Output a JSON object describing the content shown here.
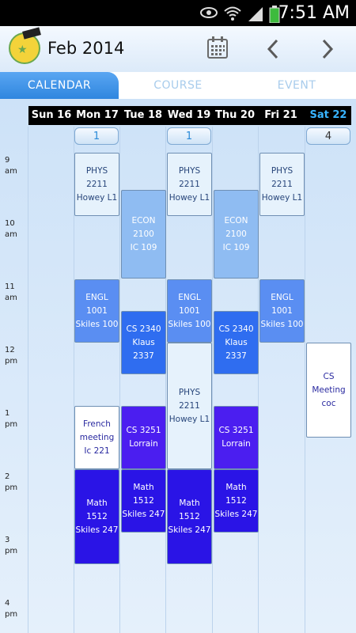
{
  "status_bar": {
    "time": "7:51 AM"
  },
  "app_bar": {
    "title": "Feb 2014",
    "calendar_icon": "calendar-icon",
    "prev_icon": "chevron-left-icon",
    "next_icon": "chevron-right-icon"
  },
  "tabs": [
    {
      "label": "CALENDAR",
      "active": true
    },
    {
      "label": "COURSE",
      "active": false
    },
    {
      "label": "EVENT",
      "active": false
    }
  ],
  "days": [
    {
      "label": "Sun 16"
    },
    {
      "label": "Mon 17"
    },
    {
      "label": "Tue 18"
    },
    {
      "label": "Wed 19"
    },
    {
      "label": "Thu 20"
    },
    {
      "label": "Fri 21"
    },
    {
      "label": "Sat 22",
      "today": true
    }
  ],
  "badges": [
    {
      "day": "Mon 17",
      "count": "1"
    },
    {
      "day": "Wed 19",
      "count": "1"
    },
    {
      "day": "Sat 22",
      "count": "4"
    }
  ],
  "hours": [
    {
      "num": "9",
      "ampm": "am"
    },
    {
      "num": "10",
      "ampm": "am"
    },
    {
      "num": "11",
      "ampm": "am"
    },
    {
      "num": "12",
      "ampm": "pm"
    },
    {
      "num": "1",
      "ampm": "pm"
    },
    {
      "num": "2",
      "ampm": "pm"
    },
    {
      "num": "3",
      "ampm": "pm"
    },
    {
      "num": "4",
      "ampm": "pm"
    }
  ],
  "events": [
    {
      "line1": "PHYS 2211",
      "line2": "Howey L1"
    },
    {
      "line1": "PHYS 2211",
      "line2": "Howey L1"
    },
    {
      "line1": "PHYS 2211",
      "line2": "Howey L1"
    },
    {
      "line1": "ECON 2100",
      "line2": "IC 109"
    },
    {
      "line1": "ECON 2100",
      "line2": "IC 109"
    },
    {
      "line1": "ENGL 1001",
      "line2": "Skiles 100"
    },
    {
      "line1": "ENGL 1001",
      "line2": "Skiles 100"
    },
    {
      "line1": "ENGL 1001",
      "line2": "Skiles 100"
    },
    {
      "line1": "CS 2340",
      "line2": "Klaus 2337"
    },
    {
      "line1": "CS 2340",
      "line2": "Klaus 2337"
    },
    {
      "line1": "PHYS 2211",
      "line2": "Howey L1"
    },
    {
      "line1": "CS Meeting",
      "line2": "coc"
    },
    {
      "line1": "French",
      "line2": "meeting",
      "line3": "Ic 221"
    },
    {
      "line1": "CS 3251",
      "line2": "Lorrain"
    },
    {
      "line1": "CS 3251",
      "line2": "Lorrain"
    },
    {
      "line1": "Math 1512",
      "line2": "Skiles 247"
    },
    {
      "line1": "Math 1512",
      "line2": "Skiles 247"
    },
    {
      "line1": "Math 1512",
      "line2": "Skiles 247"
    },
    {
      "line1": "Math 1512",
      "line2": "Skiles 247"
    }
  ]
}
